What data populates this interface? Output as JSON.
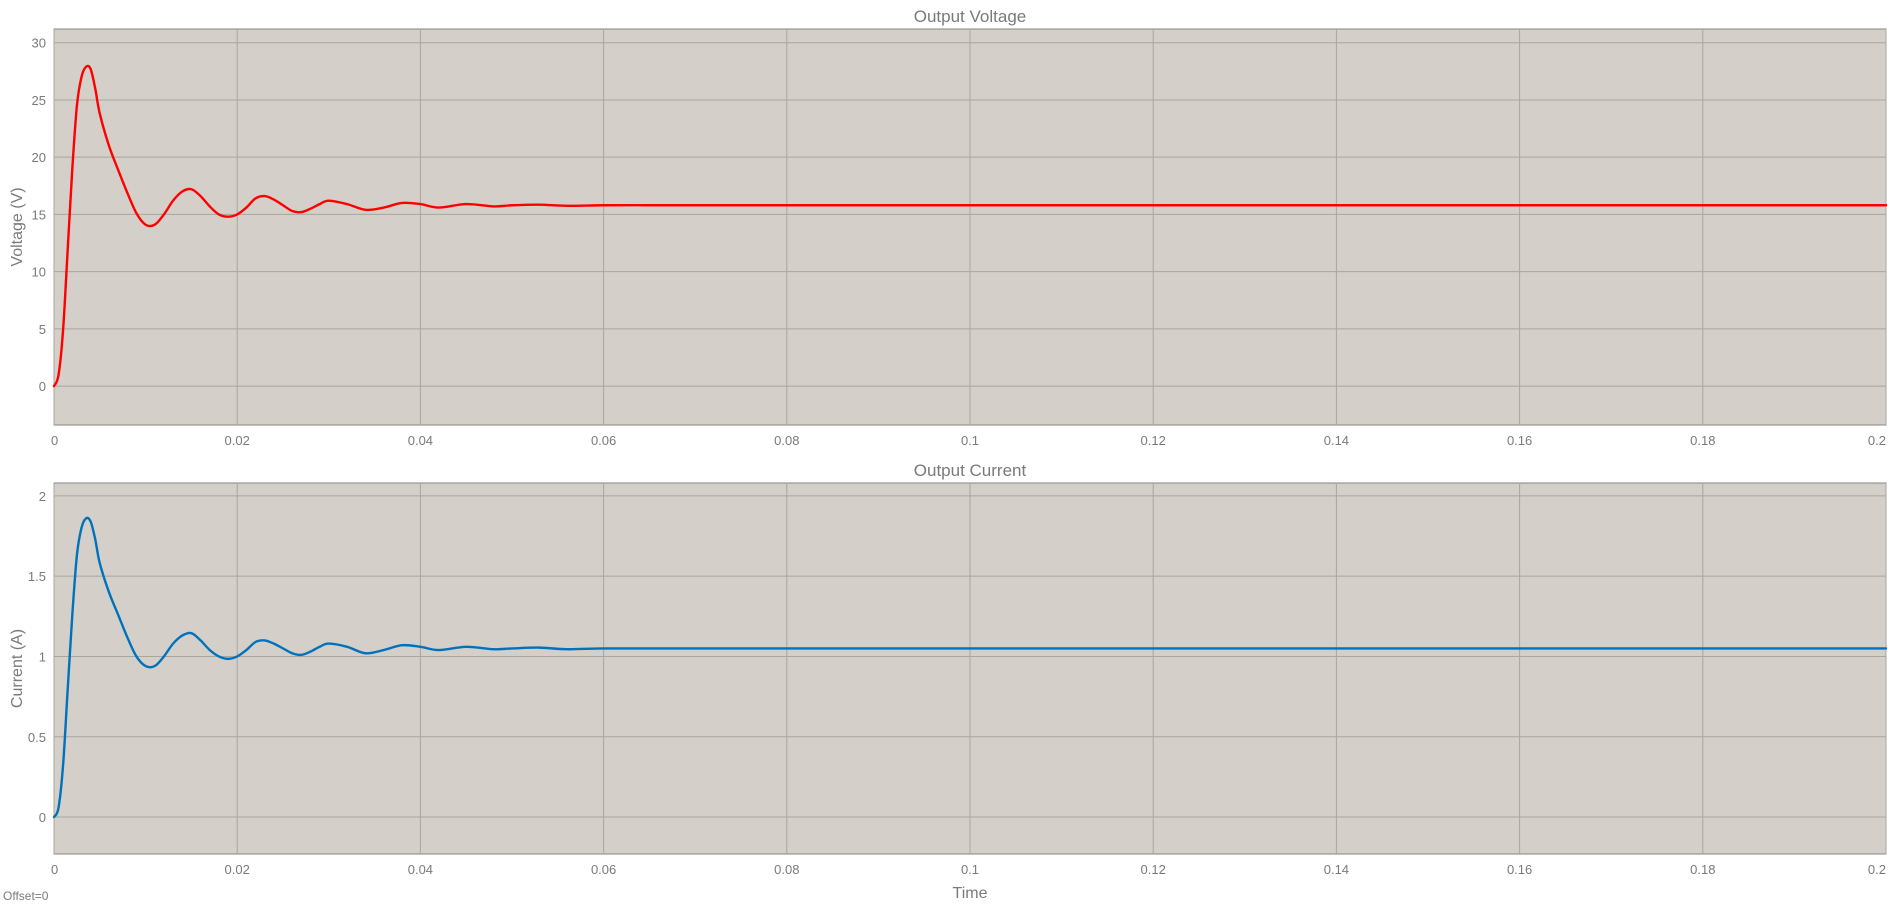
{
  "colors": {
    "plot_bg": "#d4cfc8",
    "grid": "#a9a59f",
    "frame": "#8a8680"
  },
  "footer": {
    "offset_label": "Offset=0"
  },
  "chart_data": [
    {
      "type": "line",
      "title": "Output Voltage",
      "xlabel": "",
      "ylabel": "Voltage (V)",
      "xlim": [
        0,
        0.2
      ],
      "ylim": [
        -3.4,
        31.2
      ],
      "xticks": [
        0,
        0.02,
        0.04,
        0.06,
        0.08,
        0.1,
        0.12,
        0.14,
        0.16,
        0.18,
        0.2
      ],
      "xtick_labels": [
        "0",
        "0.02",
        "0.04",
        "0.06",
        "0.08",
        "0.1",
        "0.12",
        "0.14",
        "0.16",
        "0.18",
        "0.2"
      ],
      "yticks": [
        0,
        5,
        10,
        15,
        20,
        25,
        30
      ],
      "ytick_labels": [
        "0",
        "5",
        "10",
        "15",
        "20",
        "25",
        "30"
      ],
      "grid": true,
      "series": [
        {
          "color": "#ff0000",
          "x": [
            0,
            0.0005,
            0.001,
            0.0015,
            0.002,
            0.0025,
            0.003,
            0.0035,
            0.004,
            0.0045,
            0.005,
            0.006,
            0.007,
            0.008,
            0.009,
            0.01,
            0.011,
            0.012,
            0.013,
            0.014,
            0.015,
            0.016,
            0.017,
            0.018,
            0.019,
            0.02,
            0.021,
            0.022,
            0.023,
            0.024,
            0.025,
            0.026,
            0.027,
            0.028,
            0.029,
            0.03,
            0.032,
            0.034,
            0.036,
            0.038,
            0.04,
            0.042,
            0.045,
            0.048,
            0.05,
            0.053,
            0.056,
            0.06,
            0.065,
            0.07,
            0.08,
            0.1,
            0.12,
            0.14,
            0.16,
            0.18,
            0.2
          ],
          "y": [
            0,
            1.0,
            5.0,
            12.0,
            19.0,
            24.5,
            27.0,
            27.9,
            27.7,
            26.0,
            23.8,
            21.0,
            18.9,
            16.9,
            15.1,
            14.1,
            14.1,
            15.0,
            16.2,
            17.0,
            17.2,
            16.6,
            15.7,
            15.0,
            14.8,
            15.0,
            15.6,
            16.4,
            16.6,
            16.3,
            15.8,
            15.3,
            15.2,
            15.5,
            15.9,
            16.2,
            15.9,
            15.4,
            15.6,
            16.0,
            15.9,
            15.6,
            15.9,
            15.7,
            15.8,
            15.85,
            15.75,
            15.8,
            15.8,
            15.8,
            15.8,
            15.8,
            15.8,
            15.8,
            15.8,
            15.8,
            15.8
          ]
        }
      ]
    },
    {
      "type": "line",
      "title": "Output Current",
      "xlabel": "Time",
      "ylabel": "Current (A)",
      "xlim": [
        0,
        0.2
      ],
      "ylim": [
        -0.23,
        2.08
      ],
      "xticks": [
        0,
        0.02,
        0.04,
        0.06,
        0.08,
        0.1,
        0.12,
        0.14,
        0.16,
        0.18,
        0.2
      ],
      "xtick_labels": [
        "0",
        "0.02",
        "0.04",
        "0.06",
        "0.08",
        "0.1",
        "0.12",
        "0.14",
        "0.16",
        "0.18",
        "0.2"
      ],
      "yticks": [
        0,
        0.5,
        1,
        1.5,
        2
      ],
      "ytick_labels": [
        "0",
        "0.5",
        "1",
        "1.5",
        "2"
      ],
      "grid": true,
      "series": [
        {
          "color": "#0072bd",
          "x": [
            0,
            0.0005,
            0.001,
            0.0015,
            0.002,
            0.0025,
            0.003,
            0.0035,
            0.004,
            0.0045,
            0.005,
            0.006,
            0.007,
            0.008,
            0.009,
            0.01,
            0.011,
            0.012,
            0.013,
            0.014,
            0.015,
            0.016,
            0.017,
            0.018,
            0.019,
            0.02,
            0.021,
            0.022,
            0.023,
            0.024,
            0.025,
            0.026,
            0.027,
            0.028,
            0.029,
            0.03,
            0.032,
            0.034,
            0.036,
            0.038,
            0.04,
            0.042,
            0.045,
            0.048,
            0.05,
            0.053,
            0.056,
            0.06,
            0.065,
            0.07,
            0.08,
            0.1,
            0.12,
            0.14,
            0.16,
            0.18,
            0.2
          ],
          "y": [
            0,
            0.06,
            0.33,
            0.8,
            1.26,
            1.63,
            1.8,
            1.86,
            1.84,
            1.73,
            1.58,
            1.4,
            1.26,
            1.12,
            1.0,
            0.94,
            0.94,
            1.0,
            1.08,
            1.13,
            1.145,
            1.1,
            1.04,
            1.0,
            0.985,
            1.0,
            1.04,
            1.09,
            1.1,
            1.08,
            1.05,
            1.02,
            1.01,
            1.03,
            1.06,
            1.08,
            1.06,
            1.02,
            1.04,
            1.07,
            1.06,
            1.04,
            1.06,
            1.045,
            1.05,
            1.055,
            1.045,
            1.05,
            1.05,
            1.05,
            1.05,
            1.05,
            1.05,
            1.05,
            1.05,
            1.05,
            1.05
          ]
        }
      ]
    }
  ]
}
